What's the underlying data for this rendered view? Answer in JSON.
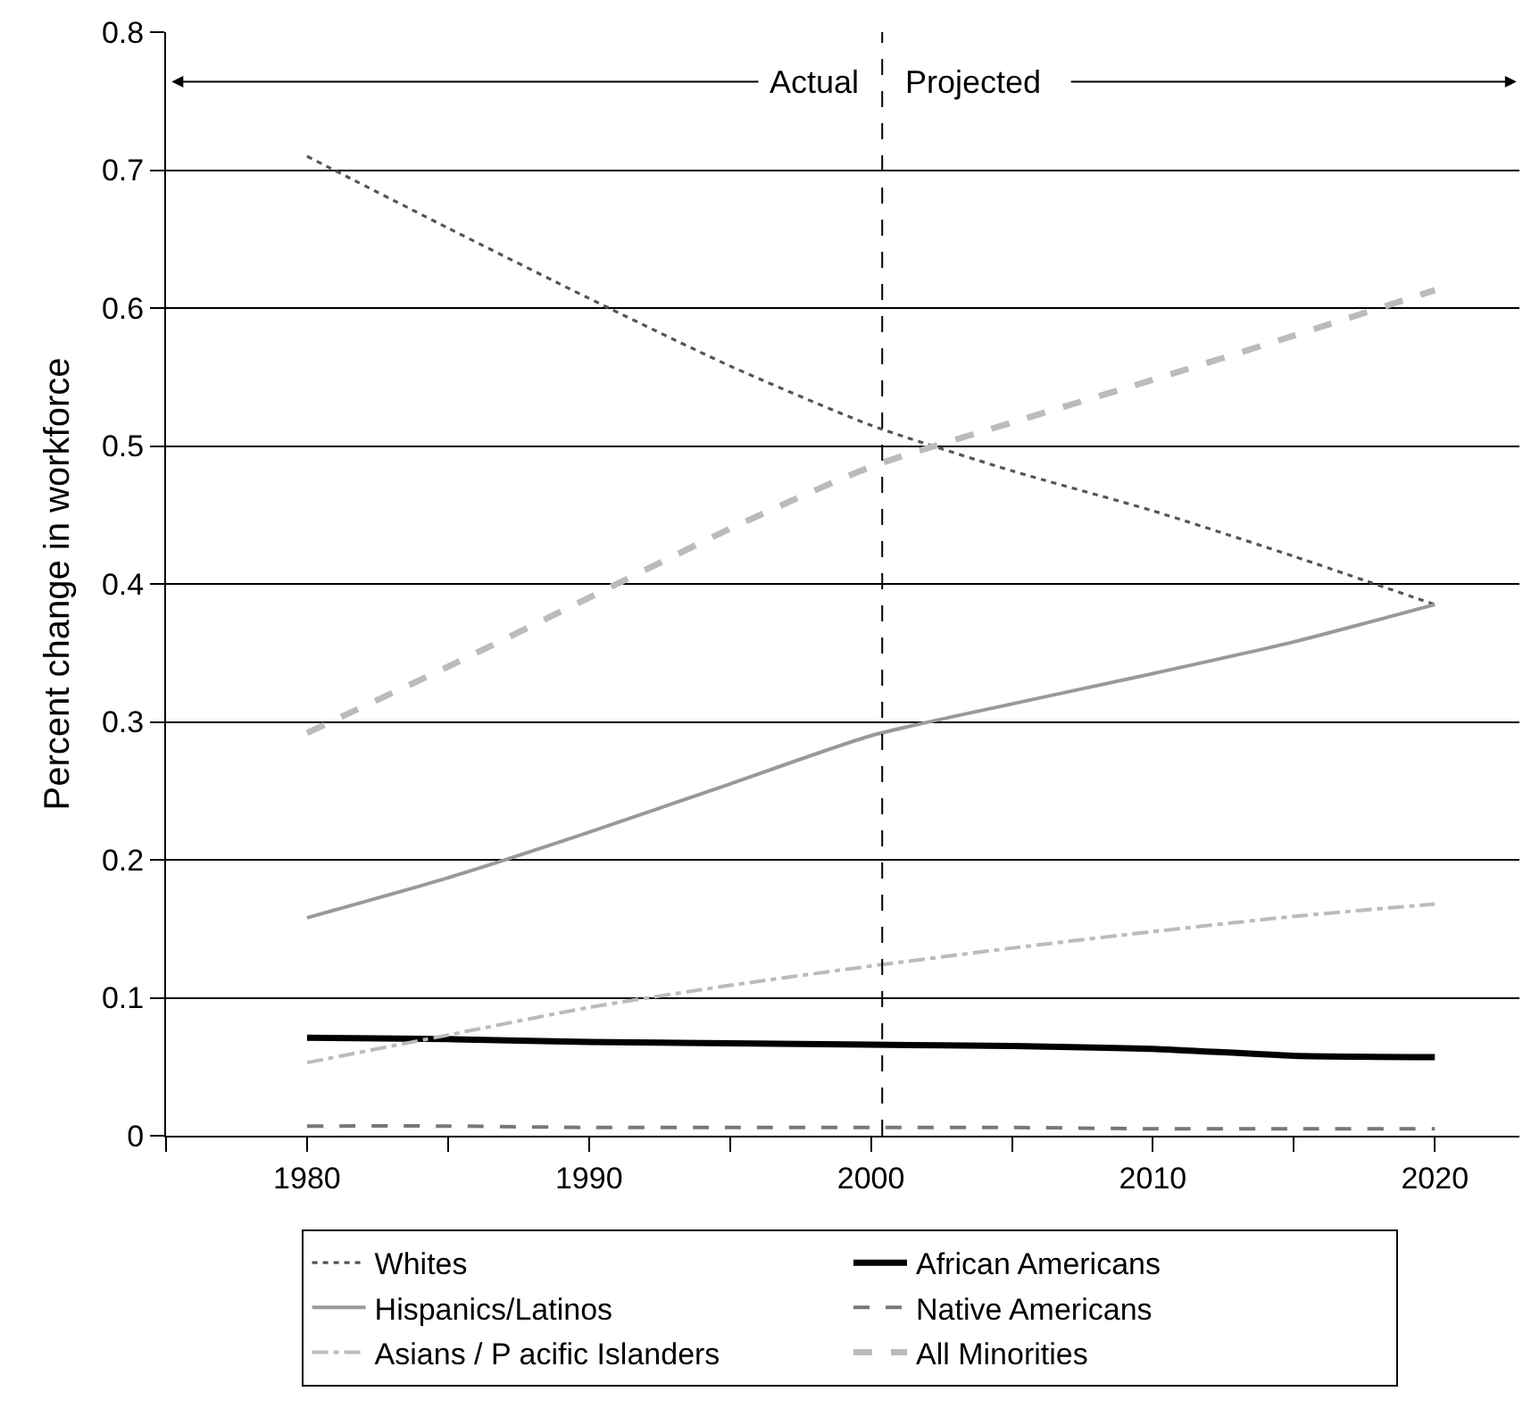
{
  "chart_data": {
    "type": "line",
    "ylabel": "Percent change in workforce",
    "x": [
      1980,
      1985,
      1990,
      1995,
      2000,
      2005,
      2010,
      2015,
      2020
    ],
    "series": [
      {
        "name": "Whites",
        "color": "#555555",
        "line_style": "dotted",
        "values": [
          0.71,
          0.658,
          0.607,
          0.558,
          0.515,
          0.482,
          0.453,
          0.42,
          0.385
        ]
      },
      {
        "name": "African Americans",
        "color": "#000000",
        "line_style": "solid",
        "values": [
          0.071,
          0.07,
          0.068,
          0.067,
          0.066,
          0.065,
          0.063,
          0.058,
          0.057
        ]
      },
      {
        "name": "Hispanics/Latinos",
        "color": "#999999",
        "line_style": "solid",
        "values": [
          0.158,
          0.187,
          0.22,
          0.255,
          0.29,
          0.313,
          0.335,
          0.358,
          0.385
        ]
      },
      {
        "name": "Native Americans",
        "color": "#777777",
        "line_style": "dashed",
        "values": [
          0.007,
          0.007,
          0.006,
          0.006,
          0.006,
          0.006,
          0.005,
          0.005,
          0.005
        ]
      },
      {
        "name": "Asians / P acific Islanders",
        "color": "#bbbbbb",
        "line_style": "dashdot",
        "values": [
          0.053,
          0.073,
          0.093,
          0.109,
          0.123,
          0.136,
          0.148,
          0.159,
          0.168
        ]
      },
      {
        "name": "All Minorities",
        "color": "#bbbbbb",
        "line_style": "dashed",
        "values": [
          0.292,
          0.34,
          0.39,
          0.44,
          0.485,
          0.517,
          0.548,
          0.58,
          0.613
        ]
      }
    ],
    "xlim": [
      1975,
      2023
    ],
    "xticks": [
      {
        "value": 1975,
        "label": null
      },
      1980,
      {
        "value": 1985,
        "label": null
      },
      1990,
      {
        "value": 1995,
        "label": null
      },
      2000,
      {
        "value": 2005,
        "label": null
      },
      2010,
      {
        "value": 2015,
        "label": null
      },
      2020
    ],
    "ylim": [
      0,
      0.8
    ],
    "yticks": [
      0,
      0.1,
      0.2,
      0.3,
      0.4,
      0.5,
      0.6,
      0.7,
      0.8
    ],
    "grid": "y",
    "legend": "bottom",
    "ref_lines": [
      {
        "axis": "x",
        "value": 2000.4,
        "label": null,
        "color": "#000000",
        "line_style": "dashed"
      }
    ],
    "annotations": [
      "Actual",
      "Projected"
    ]
  }
}
